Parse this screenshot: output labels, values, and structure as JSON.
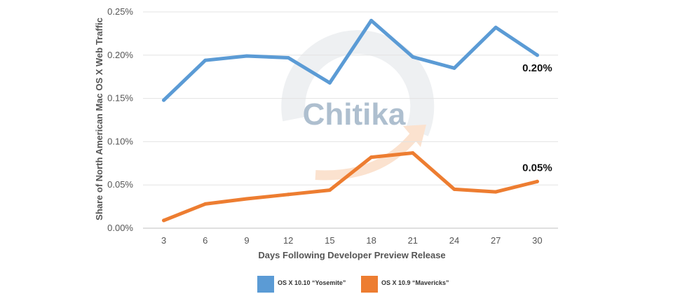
{
  "chart_data": {
    "type": "line",
    "x": [
      3,
      6,
      9,
      12,
      15,
      18,
      21,
      24,
      27,
      30
    ],
    "xlabel": "Days Following Developer Preview Release",
    "ylabel": "Share of North American Mac OS X Web Traffic",
    "ylim": [
      0,
      0.25
    ],
    "y_ticks": [
      "0.00%",
      "0.05%",
      "0.10%",
      "0.15%",
      "0.20%",
      "0.25%"
    ],
    "x_ticks": [
      "3",
      "6",
      "9",
      "12",
      "15",
      "18",
      "21",
      "24",
      "27",
      "30"
    ],
    "grid": true,
    "legend_position": "bottom",
    "series": [
      {
        "name": "OS X 10.10 “Yosemite”",
        "color": "#5b9bd5",
        "values": [
          0.148,
          0.194,
          0.199,
          0.197,
          0.168,
          0.24,
          0.198,
          0.185,
          0.232,
          0.2
        ],
        "end_label": "0.20%"
      },
      {
        "name": "OS X 10.9 “Mavericks”",
        "color": "#ed7d31",
        "values": [
          0.009,
          0.028,
          0.034,
          0.039,
          0.044,
          0.082,
          0.087,
          0.045,
          0.042,
          0.054
        ],
        "end_label": "0.05%"
      }
    ],
    "watermark": "Chitika"
  }
}
